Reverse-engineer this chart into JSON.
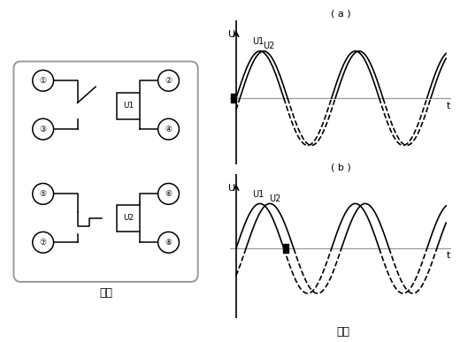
{
  "bg_color": "#ffffff",
  "line_color": "#000000",
  "gray_color": "#999999",
  "fig1_label": "图一",
  "fig2_label": "图二",
  "title_a": "( a )",
  "title_b": "( b )",
  "u_label": "U",
  "t_label": "t",
  "u1_label": "U1",
  "u2_label": "U2",
  "phase_a": 0.25,
  "phase_b": 0.65,
  "amplitude": 1.0
}
